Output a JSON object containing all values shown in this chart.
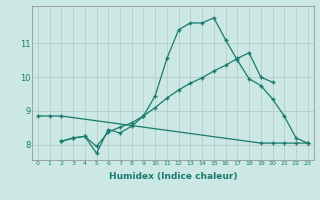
{
  "xlabel": "Humidex (Indice chaleur)",
  "bg_color": "#cce8e4",
  "grid_color": "#b0c8c4",
  "line_color": "#1a7a6e",
  "xlim": [
    -0.5,
    23.5
  ],
  "ylim": [
    7.55,
    12.1
  ],
  "yticks": [
    8,
    9,
    10,
    11
  ],
  "xticks": [
    0,
    1,
    2,
    3,
    4,
    5,
    6,
    7,
    8,
    9,
    10,
    11,
    12,
    13,
    14,
    15,
    16,
    17,
    18,
    19,
    20,
    21,
    22,
    23
  ],
  "line1_x": [
    0,
    1,
    2,
    19,
    20,
    21,
    22,
    23
  ],
  "line1_y": [
    8.85,
    8.85,
    8.85,
    8.05,
    8.05,
    8.05,
    8.05,
    8.05
  ],
  "line2_x": [
    2,
    3,
    4,
    5,
    6,
    7,
    8,
    9,
    10,
    11,
    12,
    13,
    14,
    15,
    16,
    17,
    18,
    19,
    20,
    21,
    22,
    23
  ],
  "line2_y": [
    8.1,
    8.2,
    8.25,
    7.75,
    8.45,
    8.35,
    8.55,
    8.85,
    9.45,
    10.55,
    11.4,
    11.6,
    11.6,
    11.75,
    11.1,
    10.5,
    9.95,
    9.75,
    9.35,
    8.85,
    8.2,
    8.05
  ],
  "line3_x": [
    2,
    3,
    4,
    5,
    6,
    7,
    8,
    9,
    10,
    11,
    12,
    13,
    14,
    15,
    16,
    17,
    18,
    19,
    20
  ],
  "line3_y": [
    8.1,
    8.2,
    8.25,
    7.95,
    8.38,
    8.52,
    8.65,
    8.85,
    9.1,
    9.38,
    9.62,
    9.82,
    9.98,
    10.18,
    10.35,
    10.55,
    10.72,
    10.0,
    9.85
  ]
}
